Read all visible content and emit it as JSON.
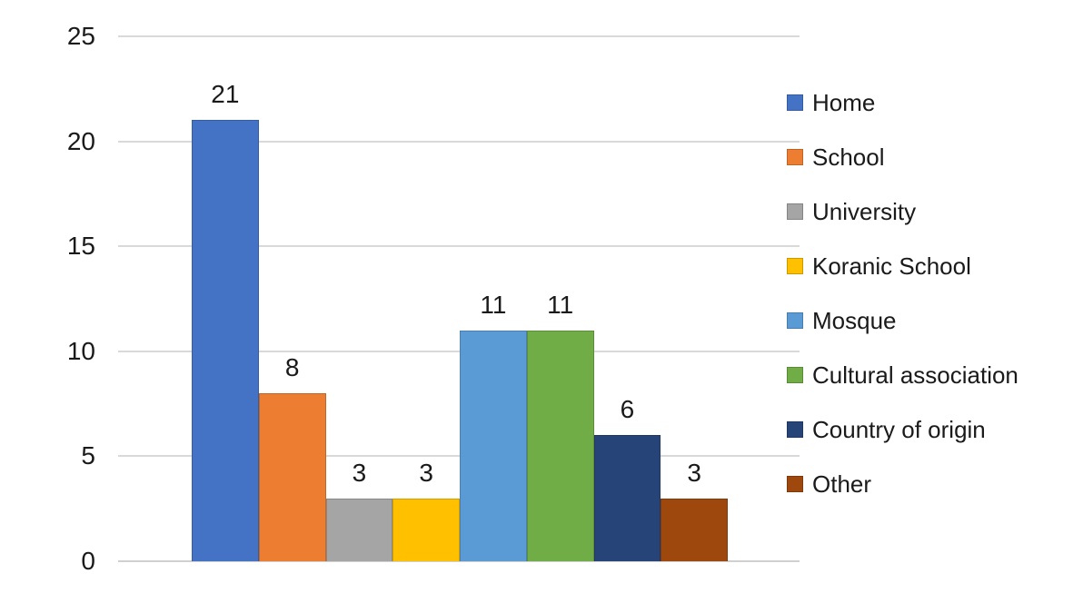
{
  "chart_data": {
    "type": "bar",
    "title": "",
    "xlabel": "",
    "ylabel": "",
    "categories": [
      "Home",
      "School",
      "University",
      "Koranic School",
      "Mosque",
      "Cultural association",
      "Country of origin",
      "Other"
    ],
    "values": [
      21,
      8,
      3,
      3,
      11,
      11,
      6,
      3
    ],
    "colors": [
      "#4472C4",
      "#ED7D31",
      "#A5A5A5",
      "#FFC000",
      "#5B9BD5",
      "#70AD47",
      "#264478",
      "#9E480E"
    ],
    "ylim": [
      0,
      25
    ],
    "yticks": [
      0,
      5,
      10,
      15,
      20,
      25
    ],
    "grid": true,
    "grid_color": "#d9d9d9",
    "background_color": "#ffffff",
    "text_color": "#1a1a1a",
    "legend_position": "right",
    "bar_value_labels": [
      "21",
      "8",
      "3",
      "3",
      "11",
      "11",
      "6",
      "3"
    ],
    "ytick_labels": [
      "0",
      "5",
      "10",
      "15",
      "20",
      "25"
    ]
  }
}
